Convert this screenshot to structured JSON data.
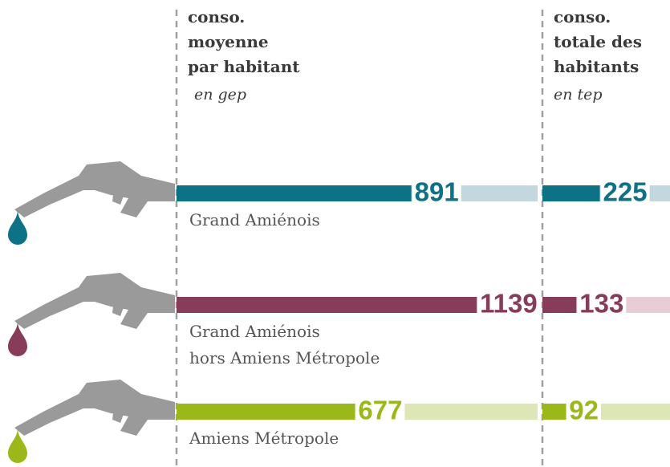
{
  "chart_data": [
    {
      "type": "bar",
      "title": [
        "conso.",
        "moyenne",
        "par habitant"
      ],
      "subtitle": "en gep",
      "categories": [
        [
          "Grand Amiénois"
        ],
        [
          "Grand Amiénois",
          "hors Amiens Métropole"
        ],
        [
          "Amiens Métropole"
        ]
      ],
      "values": [
        891,
        1139,
        677
      ],
      "colors": [
        "#0e7286",
        "#873d5a",
        "#9bb81a"
      ],
      "track_colors": [
        "#c3d7df",
        "#e6cdd6",
        "#dde7b5"
      ],
      "xlim": [
        0,
        1370
      ]
    },
    {
      "type": "bar",
      "title": [
        "conso.",
        "totale des",
        "habitants"
      ],
      "subtitle": "en tep",
      "values": [
        225,
        133,
        92
      ],
      "colors": [
        "#0e7286",
        "#873d5a",
        "#9bb81a"
      ],
      "track_colors": [
        "#c3d7df",
        "#e6cdd6",
        "#dde7b5"
      ],
      "xlim": [
        0,
        500
      ]
    }
  ]
}
